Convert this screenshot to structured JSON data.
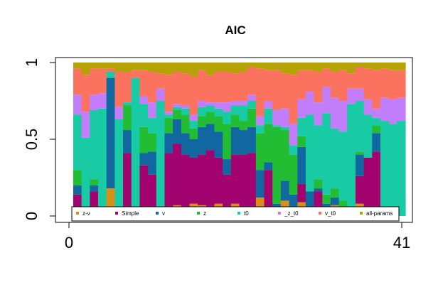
{
  "chart_data": {
    "type": "stacked-bar",
    "title": "AIC",
    "xlim": [
      0,
      41
    ],
    "ylim": [
      0,
      1
    ],
    "x_ticks": [
      "0",
      "41"
    ],
    "y_ticks": [
      "0",
      "0.5",
      "1"
    ],
    "legend": {
      "placement": "bottom",
      "box": true
    },
    "series": [
      {
        "name": "z-v",
        "color": "#D98E1A"
      },
      {
        "name": "Simple",
        "color": "#A3036E"
      },
      {
        "name": "v",
        "color": "#1167A0"
      },
      {
        "name": "z",
        "color": "#22BD33"
      },
      {
        "name": "t0",
        "color": "#18CBA5"
      },
      {
        "name": "_z_t0",
        "color": "#C27DFA"
      },
      {
        "name": "v_t0",
        "color": "#FB735F"
      },
      {
        "name": "all-params",
        "color": "#B5A204"
      }
    ],
    "proportions": [
      [
        0.04,
        0.1,
        0.06,
        0.1,
        0.36,
        0.13,
        0.17,
        0.04
      ],
      [
        0.0,
        0.0,
        0.0,
        0.0,
        0.51,
        0.17,
        0.24,
        0.08
      ],
      [
        0.04,
        0.12,
        0.04,
        0.04,
        0.45,
        0.1,
        0.17,
        0.04
      ],
      [
        0.0,
        0.0,
        0.0,
        0.05,
        0.65,
        0.1,
        0.16,
        0.04
      ],
      [
        0.18,
        0.0,
        0.72,
        0.0,
        0.04,
        0.0,
        0.02,
        0.04
      ],
      [
        0.0,
        0.0,
        0.0,
        0.04,
        0.59,
        0.08,
        0.23,
        0.06
      ],
      [
        0.05,
        0.36,
        0.15,
        0.16,
        0.02,
        0.0,
        0.2,
        0.06
      ],
      [
        0.0,
        0.0,
        0.0,
        0.0,
        0.9,
        0.0,
        0.05,
        0.05
      ],
      [
        0.05,
        0.28,
        0.08,
        0.17,
        0.15,
        0.05,
        0.17,
        0.05
      ],
      [
        0.05,
        0.22,
        0.15,
        0.12,
        0.1,
        0.1,
        0.2,
        0.06
      ],
      [
        0.0,
        0.0,
        0.0,
        0.0,
        0.75,
        0.08,
        0.1,
        0.07
      ],
      [
        0.03,
        0.38,
        0.13,
        0.1,
        0.02,
        0.02,
        0.24,
        0.08
      ],
      [
        0.07,
        0.4,
        0.16,
        0.06,
        0.02,
        0.02,
        0.21,
        0.06
      ],
      [
        0.03,
        0.37,
        0.14,
        0.12,
        0.04,
        0.02,
        0.21,
        0.07
      ],
      [
        0.08,
        0.3,
        0.12,
        0.07,
        0.05,
        0.04,
        0.25,
        0.09
      ],
      [
        0.07,
        0.33,
        0.18,
        0.07,
        0.06,
        0.04,
        0.2,
        0.05
      ],
      [
        0.05,
        0.38,
        0.17,
        0.08,
        0.04,
        0.02,
        0.18,
        0.08
      ],
      [
        0.08,
        0.3,
        0.17,
        0.1,
        0.05,
        0.04,
        0.2,
        0.06
      ],
      [
        0.05,
        0.22,
        0.1,
        0.23,
        0.08,
        0.06,
        0.2,
        0.06
      ],
      [
        0.08,
        0.32,
        0.18,
        0.08,
        0.06,
        0.03,
        0.18,
        0.07
      ],
      [
        0.05,
        0.35,
        0.16,
        0.06,
        0.1,
        0.03,
        0.19,
        0.06
      ],
      [
        0.04,
        0.37,
        0.17,
        0.12,
        0.05,
        0.04,
        0.18,
        0.03
      ],
      [
        0.12,
        0.0,
        0.18,
        0.24,
        0.05,
        0.06,
        0.31,
        0.04
      ],
      [
        0.05,
        0.25,
        0.05,
        0.25,
        0.1,
        0.05,
        0.2,
        0.05
      ],
      [
        0.02,
        0.0,
        0.06,
        0.5,
        0.01,
        0.1,
        0.26,
        0.05
      ],
      [
        0.1,
        0.0,
        0.13,
        0.33,
        0.02,
        0.12,
        0.23,
        0.07
      ],
      [
        0.03,
        0.0,
        0.11,
        0.26,
        0.06,
        0.14,
        0.32,
        0.08
      ],
      [
        0.09,
        0.12,
        0.24,
        0.07,
        0.12,
        0.12,
        0.19,
        0.05
      ],
      [
        0.05,
        0.0,
        0.11,
        0.0,
        0.5,
        0.15,
        0.14,
        0.05
      ],
      [
        0.03,
        0.13,
        0.02,
        0.06,
        0.35,
        0.15,
        0.2,
        0.06
      ],
      [
        0.06,
        0.0,
        0.02,
        0.06,
        0.53,
        0.17,
        0.12,
        0.04
      ],
      [
        0.07,
        0.0,
        0.05,
        0.06,
        0.39,
        0.2,
        0.17,
        0.06
      ],
      [
        0.05,
        0.0,
        0.0,
        0.05,
        0.45,
        0.2,
        0.2,
        0.05
      ],
      [
        0.06,
        0.0,
        0.0,
        0.0,
        0.67,
        0.1,
        0.1,
        0.07
      ],
      [
        0.08,
        0.18,
        0.14,
        0.02,
        0.33,
        0.08,
        0.14,
        0.03
      ],
      [
        0.04,
        0.34,
        0.0,
        0.0,
        0.28,
        0.1,
        0.2,
        0.04
      ],
      [
        0.05,
        0.37,
        0.12,
        0.05,
        0.05,
        0.06,
        0.25,
        0.05
      ],
      [
        0.0,
        0.0,
        0.0,
        0.0,
        0.62,
        0.15,
        0.19,
        0.04
      ],
      [
        0.0,
        0.0,
        0.0,
        0.0,
        0.6,
        0.16,
        0.19,
        0.05
      ],
      [
        0.0,
        0.0,
        0.0,
        0.0,
        0.62,
        0.15,
        0.18,
        0.05
      ]
    ]
  }
}
